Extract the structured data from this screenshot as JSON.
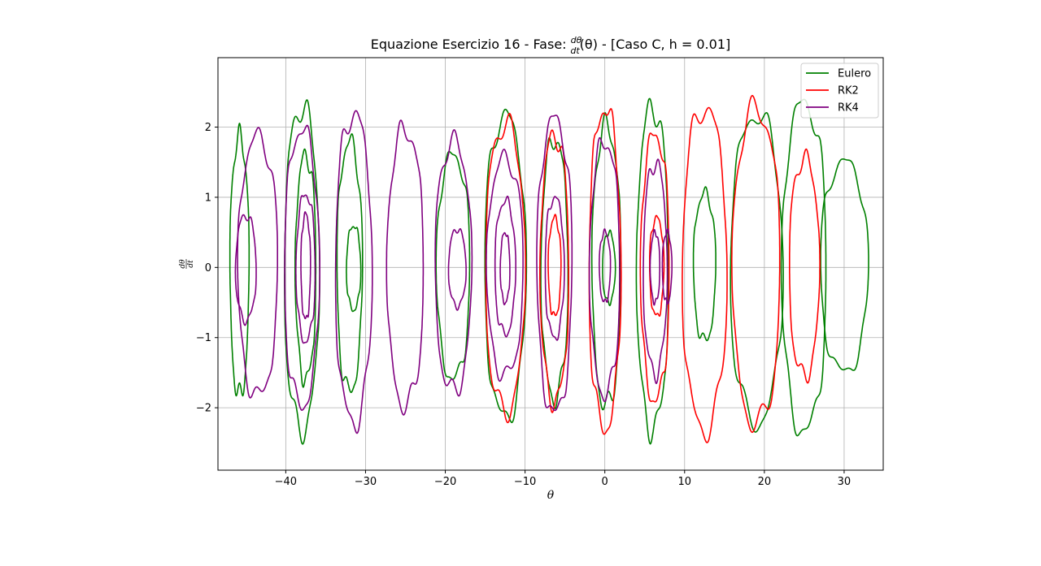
{
  "chart_data": {
    "type": "line",
    "title_prefix": "Equazione Esercizio 16 - Fase: ",
    "title_suffix": " - [Caso C, h = 0.01]",
    "title_frac_num": "dθ",
    "title_frac_den": "dt",
    "title_arg": "(θ)",
    "xlabel": "θ",
    "ylabel_num": "dθ",
    "ylabel_den": "dt",
    "xlim": [
      -48.5,
      34.9
    ],
    "ylim": [
      -2.89,
      2.99
    ],
    "x_ticks": [
      -40,
      -30,
      -20,
      -10,
      0,
      10,
      20,
      30
    ],
    "x_tick_labels": [
      "−40",
      "−30",
      "−20",
      "−10",
      "0",
      "10",
      "20",
      "30"
    ],
    "y_ticks": [
      -2,
      -1,
      0,
      1,
      2
    ],
    "y_tick_labels": [
      "−2",
      "−1",
      "0",
      "1",
      "2"
    ],
    "grid": true,
    "legend_position": "top-right",
    "series": [
      {
        "name": "Eulero",
        "color": "#008000",
        "orbits": [
          {
            "cx": -45.8,
            "rx": 1.2,
            "ry": 1.85
          },
          {
            "cx": -38.0,
            "rx": 2.2,
            "ry": 2.3
          },
          {
            "cx": -37.5,
            "rx": 1.3,
            "ry": 1.6
          },
          {
            "cx": -32.0,
            "rx": 1.6,
            "ry": 1.78
          },
          {
            "cx": -31.5,
            "rx": 0.9,
            "ry": 0.6
          },
          {
            "cx": -19.0,
            "rx": 2.1,
            "ry": 1.6
          },
          {
            "cx": -12.5,
            "rx": 2.6,
            "ry": 2.15
          },
          {
            "cx": -6.3,
            "rx": 1.7,
            "ry": 1.85
          },
          {
            "cx": 0.2,
            "rx": 1.8,
            "ry": 2.0
          },
          {
            "cx": 0.5,
            "rx": 0.8,
            "ry": 0.5
          },
          {
            "cx": 6.0,
            "rx": 2.0,
            "ry": 2.3
          },
          {
            "cx": 12.5,
            "rx": 1.4,
            "ry": 1.05
          },
          {
            "cx": 19.0,
            "rx": 3.3,
            "ry": 2.2
          },
          {
            "cx": 25.0,
            "rx": 2.8,
            "ry": 2.35
          },
          {
            "cx": 30.0,
            "rx": 3.0,
            "ry": 1.5
          }
        ]
      },
      {
        "name": "RK2",
        "color": "#ff0000",
        "orbits": [
          {
            "cx": -12.5,
            "rx": 2.5,
            "ry": 2.05
          },
          {
            "cx": -6.3,
            "rx": 1.8,
            "ry": 1.9
          },
          {
            "cx": -6.3,
            "rx": 0.8,
            "ry": 0.7
          },
          {
            "cx": 0.0,
            "rx": 2.0,
            "ry": 2.28
          },
          {
            "cx": 6.3,
            "rx": 1.8,
            "ry": 1.9
          },
          {
            "cx": 6.5,
            "rx": 0.9,
            "ry": 0.7
          },
          {
            "cx": 12.5,
            "rx": 2.8,
            "ry": 2.3
          },
          {
            "cx": 19.0,
            "rx": 3.0,
            "ry": 2.25
          },
          {
            "cx": 25.0,
            "rx": 1.9,
            "ry": 1.55
          }
        ]
      },
      {
        "name": "RK4",
        "color": "#800080",
        "orbits": [
          {
            "cx": -45.0,
            "rx": 1.3,
            "ry": 0.75
          },
          {
            "cx": -43.5,
            "rx": 2.5,
            "ry": 1.85
          },
          {
            "cx": -38.0,
            "rx": 2.2,
            "ry": 1.97
          },
          {
            "cx": -37.5,
            "rx": 1.2,
            "ry": 1.05
          },
          {
            "cx": -37.5,
            "rx": 0.6,
            "ry": 0.75
          },
          {
            "cx": -31.5,
            "rx": 2.3,
            "ry": 2.2
          },
          {
            "cx": -25.0,
            "rx": 2.3,
            "ry": 1.97
          },
          {
            "cx": -19.0,
            "rx": 2.3,
            "ry": 1.78
          },
          {
            "cx": -18.5,
            "rx": 1.1,
            "ry": 0.55
          },
          {
            "cx": -12.5,
            "rx": 2.3,
            "ry": 1.55
          },
          {
            "cx": -12.5,
            "rx": 1.3,
            "ry": 0.95
          },
          {
            "cx": -12.5,
            "rx": 0.6,
            "ry": 0.5
          },
          {
            "cx": -6.3,
            "rx": 2.2,
            "ry": 2.1
          },
          {
            "cx": -6.3,
            "rx": 1.2,
            "ry": 1.0
          },
          {
            "cx": 0.0,
            "rx": 1.9,
            "ry": 1.8
          },
          {
            "cx": 0.0,
            "rx": 0.7,
            "ry": 0.5
          },
          {
            "cx": 6.3,
            "rx": 1.5,
            "ry": 1.5
          },
          {
            "cx": 6.3,
            "rx": 0.6,
            "ry": 0.5
          },
          {
            "cx": 7.8,
            "rx": 0.6,
            "ry": 0.5
          }
        ]
      }
    ]
  }
}
